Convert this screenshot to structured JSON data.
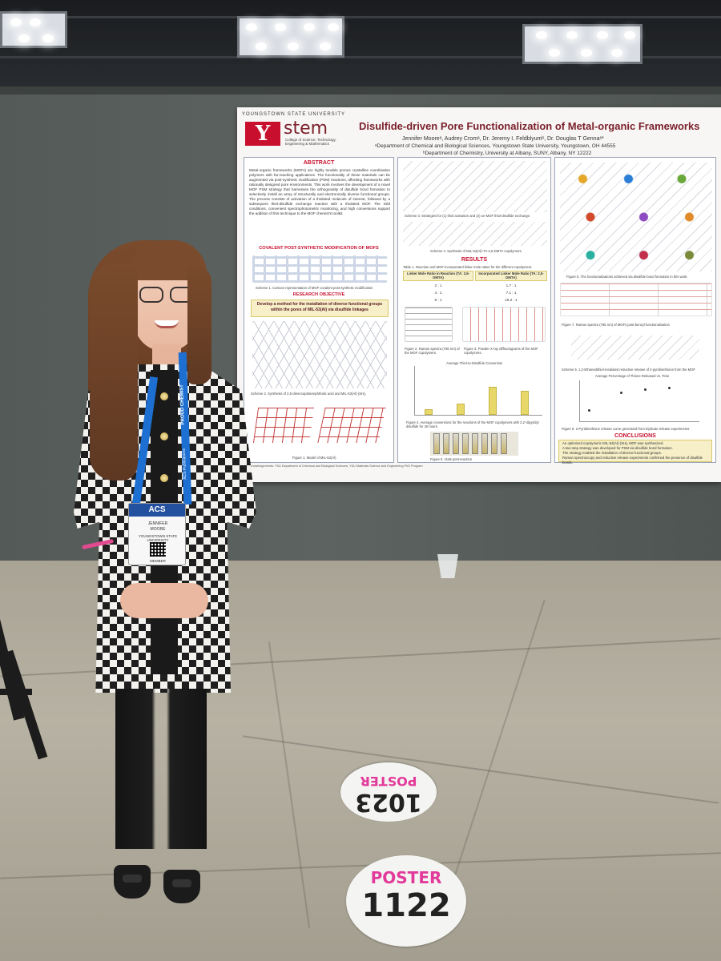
{
  "poster": {
    "university": "YOUNGSTOWN STATE UNIVERSITY",
    "logo_letter": "Y",
    "stem_logo": "stem",
    "stem_subtitle": "College of Science, Technology, Engineering & Mathematics",
    "title": "Disulfide-driven Pore Functionalization of Metal-organic Frameworks",
    "authors": "Jennifer Mooreᵃ, Audrey Cromᵃ, Dr. Jeremy I. Feldblyumᵇ, Dr. Douglas T Gennaᵃ*",
    "affiliation_a": "ᵃDepartment of Chemical and Biological Sciences, Youngstown State University, Youngstown, OH 44555",
    "affiliation_b": "ᵇDepartment of Chemistry, University at Albany, SUNY, Albany, NY 12222",
    "abstract_heading": "ABSTRACT",
    "abstract_text": "Metal-organic frameworks (MOFs) are highly tunable porous crystalline coordination polymers with far-reaching applications. The functionality of these materials can be augmented via post-synthetic modification (PSM) reactions, affording frameworks with rationally designed pore environments. This work involves the development of a novel MOF PSM strategy that harnesses the orthogonality of disulfide bond formation to selectively install an array of structurally and electronically diverse functional groups. The process consists of activation of a thiolated molecule of interest, followed by a subsequent thiol-disulfide exchange reaction with a thiolated MOF. The mild conditions, convenient spectrophotometric monitoring, and high conversions support the addition of this technique to the MOF chemist's toolkit.",
    "psm_heading": "COVALENT POST-SYNTHETIC MODIFICATION OF MOFS",
    "scheme1_caption": "Scheme 1. Cartoon representation of MOF covalent post-synthetic modification",
    "objective_heading": "RESEARCH OBJECTIVE",
    "objective_text": "Develop a method for the installation of diverse functional groups within the pores of MIL-53(Al) via disulfide linkages",
    "scheme2_caption": "Scheme 2. Synthesis of 2,5-dimercaptoterephthalic acid and MIL-53(Al)-(SH)₂",
    "figure1_caption": "Figure 1. Model of MIL-53(Al)",
    "scheme3_caption": "Scheme 3. Strategies for (1) thiol activation and (2) on-MOF thiol-disulfide exchange.",
    "scheme4_caption": "Scheme 4. Synthesis of MIL-53(Al)-TA-2,5-DMTA copolymers.",
    "results_heading": "RESULTS",
    "table1_caption": "Table 1. Reaction and MOF-incorporated linker mole ratios for the different copolymers.",
    "table_headers": [
      "Linker Mole Ratio in Reaction (TA: 2,5-DMTA)",
      "Incorporated Linker Mole Ratio (TA: 2,5-DMTA)"
    ],
    "table_rows": [
      [
        "2 : 1",
        "1.7 : 1"
      ],
      [
        "4 : 1",
        "7.1 : 1"
      ],
      [
        "8 : 1",
        "15.2 : 1"
      ]
    ],
    "figure2_caption": "Figure 2. Raman spectra (785 nm) of the MOF copolymers.",
    "figure3_caption": "Figure 3. Powder X-ray diffractograms of the MOF copolymers.",
    "bar_chart_title": "Average Thiol-to-Disulfide Conversion",
    "figure4_caption": "Figure 4. Average conversions for the reactions of the MOF copolymers with 2,2'-dipyridyl disulfide for 25 hours.",
    "figure5_caption": "Figure 5. Vials post-reaction",
    "figure6_caption": "Figure 6. The functionalizations achieved via disulfide bond formation in this work.",
    "figure7_caption": "Figure 7. Raman spectra (785 nm) of MOFs post-benzyl functionalization",
    "scheme5_caption": "Scheme 5. 1,2-Ethanedithiol-mediated reductive release of 2-pyridinethione from the MOF",
    "scatter_title": "Average Percentage of Thione Released vs. Time",
    "figure8_caption": "Figure 8. 2-Pyridinethione release curve generated from triplicate release experiments",
    "conclusions_heading": "CONCLUSIONS",
    "conclusions": [
      "An optimized copolymeric MIL-53(Al)-(SH)ₓ MOF was synthesized.",
      "A two-step strategy was developed for PSM via disulfide bond formation.",
      "The strategy enabled the installation of diverse functional groups.",
      "Raman spectroscopy and reductive release experiments confirmed the presence of disulfide bonds."
    ],
    "acknowledgements": "Acknowledgements: YSU Department of Chemical and Biological Sciences, YSU Materials Science and Engineering PhD Program",
    "bar_values": [
      12,
      22,
      56,
      48
    ],
    "bar_color": "#e8d86a",
    "accent_color": "#c8102e"
  },
  "badge": {
    "header": "ACS",
    "name_line1": "JENNIFER",
    "name_line2": "MOORE",
    "org": "YOUNGSTOWN STATE UNIVERSITY",
    "role": "MEMBER"
  },
  "lanyard": {
    "text": "PROUD CHEMIST",
    "brand": "ACS Publications",
    "color": "#1d6fd1"
  },
  "stickers": {
    "back": {
      "label": "POSTER",
      "number": "1023"
    },
    "front": {
      "label": "POSTER",
      "number": "1122"
    },
    "label_color": "#e23a9a"
  }
}
